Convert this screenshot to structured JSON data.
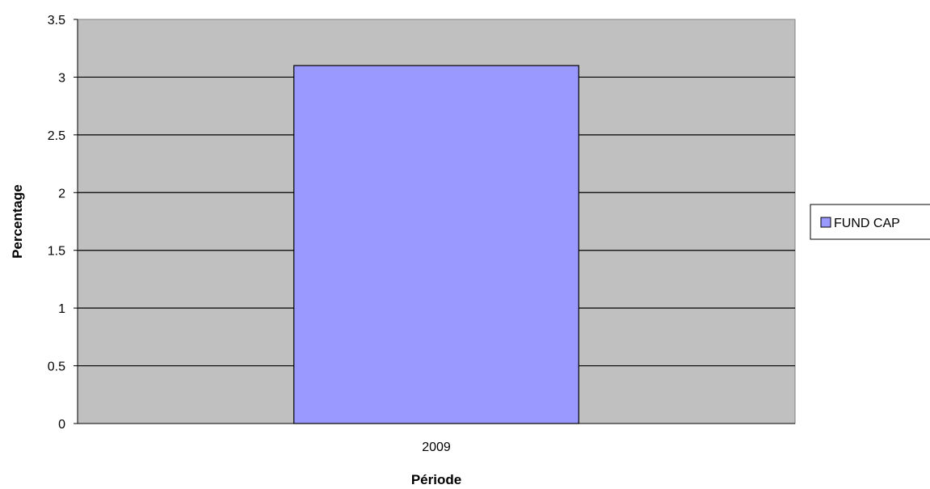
{
  "chart_data": {
    "type": "bar",
    "categories": [
      "2009"
    ],
    "series": [
      {
        "name": "FUND CAP",
        "values": [
          3.1
        ]
      }
    ],
    "title": "",
    "xlabel": "Période",
    "ylabel": "Percentage",
    "ylim": [
      0,
      3.5
    ],
    "yticks": [
      "0",
      "0.5",
      "1",
      "1.5",
      "2",
      "2.5",
      "3",
      "3.5"
    ],
    "grid": true,
    "legend": "right",
    "colors": {
      "bar": "#9999ff",
      "bar_border": "#000000",
      "plot_background": "#c0c0c0",
      "gridline": "#000000"
    }
  }
}
